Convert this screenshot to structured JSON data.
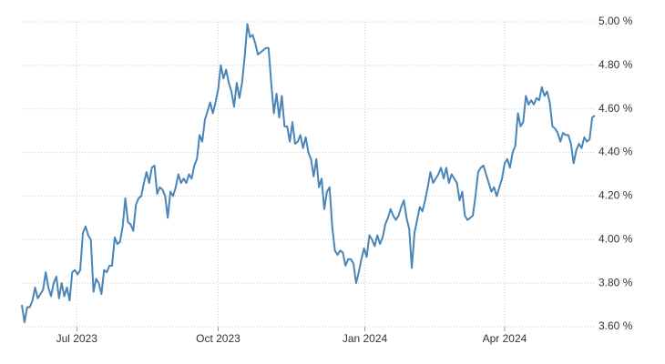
{
  "chart_data": {
    "type": "line",
    "color": "#4a85b8",
    "values": [
      3.7,
      3.62,
      3.69,
      3.69,
      3.72,
      3.78,
      3.73,
      3.75,
      3.77,
      3.85,
      3.78,
      3.74,
      3.8,
      3.83,
      3.73,
      3.8,
      3.74,
      3.78,
      3.72,
      3.85,
      3.86,
      3.84,
      3.86,
      4.03,
      4.06,
      4.02,
      4.0,
      3.76,
      3.82,
      3.8,
      3.75,
      3.86,
      3.85,
      3.88,
      3.88,
      4.01,
      3.98,
      3.99,
      4.06,
      4.19,
      4.08,
      4.07,
      4.04,
      4.16,
      4.19,
      4.2,
      4.26,
      4.31,
      4.26,
      4.33,
      4.34,
      4.21,
      4.24,
      4.23,
      4.2,
      4.1,
      4.22,
      4.2,
      4.24,
      4.3,
      4.26,
      4.28,
      4.26,
      4.3,
      4.28,
      4.34,
      4.37,
      4.48,
      4.45,
      4.55,
      4.59,
      4.63,
      4.58,
      4.63,
      4.69,
      4.8,
      4.74,
      4.78,
      4.72,
      4.68,
      4.61,
      4.72,
      4.65,
      4.72,
      4.84,
      4.99,
      4.93,
      4.94,
      4.9,
      4.85,
      4.86,
      4.87,
      4.88,
      4.88,
      4.72,
      4.58,
      4.67,
      4.56,
      4.66,
      4.52,
      4.52,
      4.45,
      4.54,
      4.44,
      4.45,
      4.48,
      4.42,
      4.47,
      4.4,
      4.37,
      4.29,
      4.37,
      4.24,
      4.28,
      4.14,
      4.22,
      4.24,
      4.06,
      3.95,
      3.93,
      3.95,
      3.94,
      3.88,
      3.91,
      3.91,
      3.89,
      3.8,
      3.85,
      3.91,
      3.96,
      3.92,
      4.02,
      4.0,
      3.97,
      4.02,
      3.98,
      4.01,
      4.07,
      4.1,
      4.14,
      4.11,
      4.09,
      4.11,
      4.15,
      4.18,
      4.1,
      4.05,
      3.87,
      4.03,
      4.09,
      4.15,
      4.13,
      4.18,
      4.24,
      4.31,
      4.26,
      4.28,
      4.3,
      4.33,
      4.28,
      4.33,
      4.26,
      4.3,
      4.28,
      4.26,
      4.18,
      4.22,
      4.11,
      4.09,
      4.1,
      4.11,
      4.2,
      4.31,
      4.33,
      4.34,
      4.3,
      4.26,
      4.22,
      4.24,
      4.2,
      4.24,
      4.28,
      4.35,
      4.37,
      4.33,
      4.4,
      4.43,
      4.58,
      4.52,
      4.54,
      4.66,
      4.62,
      4.64,
      4.62,
      4.65,
      4.64,
      4.7,
      4.66,
      4.68,
      4.63,
      4.52,
      4.51,
      4.49,
      4.45,
      4.49,
      4.48,
      4.48,
      4.44,
      4.35,
      4.41,
      4.44,
      4.42,
      4.47,
      4.45,
      4.46,
      4.56,
      4.57
    ],
    "xlim": [
      0,
      216
    ],
    "xticks": [
      {
        "value": 20.7,
        "label": "Jul 2023"
      },
      {
        "value": 74,
        "label": "Oct 2023"
      },
      {
        "value": 129.3,
        "label": "Jan 2024"
      },
      {
        "value": 182,
        "label": "Apr 2024"
      }
    ],
    "ylim": [
      3.6,
      5.0
    ],
    "yticks": [
      {
        "value": 3.6,
        "label": "3.60 %"
      },
      {
        "value": 3.8,
        "label": "3.80 %"
      },
      {
        "value": 4.0,
        "label": "4.00 %"
      },
      {
        "value": 4.2,
        "label": "4.20 %"
      },
      {
        "value": 4.4,
        "label": "4.40 %"
      },
      {
        "value": 4.6,
        "label": "4.60 %"
      },
      {
        "value": 4.8,
        "label": "4.80 %"
      },
      {
        "value": 5.0,
        "label": "5.00 %"
      }
    ],
    "grid": true
  }
}
